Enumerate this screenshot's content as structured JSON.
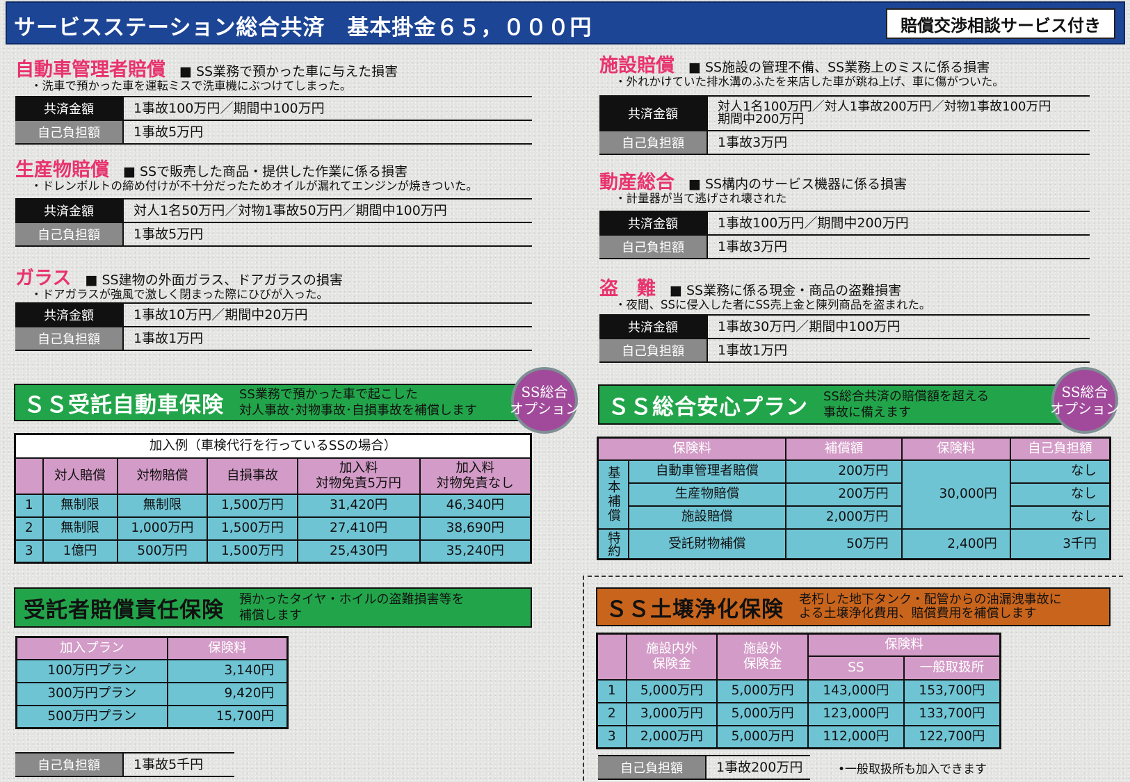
{
  "header": {
    "title": "サービスステーション総合共済　基本掛金６５，０００円",
    "badge": "賠償交渉相談サービス付き",
    "color": "#1d4595"
  },
  "labels": {
    "coverage": "共済金額",
    "deductible": "自己負担額"
  },
  "sections": [
    {
      "title": "自動車管理者賠償",
      "desc": "SS業務で預かった車に与えた損害",
      "example": "・洗車で預かった車を運転ミスで洗車機にぶつけてしまった。",
      "coverage": "1事故100万円／期間中100万円",
      "deductible": "1事故5万円"
    },
    {
      "title": "生産物賠償",
      "desc": "SSで販売した商品・提供した作業に係る損害",
      "example": "・ドレンボルトの締め付けが不十分だったためオイルが漏れてエンジンが焼きついた。",
      "coverage": "対人1名50万円／対物1事故50万円／期間中100万円",
      "deductible": "1事故5万円"
    },
    {
      "title": "ガラス",
      "desc": "SS建物の外面ガラス、ドアガラスの損害",
      "example": "・ドアガラスが強風で激しく閉まった際にひびが入った。",
      "coverage": "1事故10万円／期間中20万円",
      "deductible": "1事故1万円"
    },
    {
      "title": "施設賠償",
      "desc": "SS施設の管理不備、SS業務上のミスに係る損害",
      "example": "・外れかけていた排水溝のふたを来店した車が跳ね上げ、車に傷がついた。",
      "coverage": "対人1名100万円／対人1事故200万円／対物1事故100万円\n期間中200万円",
      "deductible": "1事故3万円"
    },
    {
      "title": "動産総合",
      "desc": "SS構内のサービス機器に係る損害",
      "example": "・計量器が当て逃げされ壊された",
      "coverage": "1事故100万円／期間中200万円",
      "deductible": "1事故3万円"
    },
    {
      "title": "盗　難",
      "desc": "SS業務に係る現金・商品の盗難損害",
      "example": "・夜間、SSに侵入した者にSS売上金と陳列商品を盗まれた。",
      "coverage": "1事故30万円／期間中100万円",
      "deductible": "1事故1万円"
    }
  ],
  "option_badge": "SS総合\nオプション",
  "auto": {
    "title": "ＳＳ受託自動車保険",
    "desc": "SS業務で預かった車で起こした\n対人事故･対物事故･自損事故を補償します",
    "caption": "加入例（車検代行を行っているSSの場合）",
    "headers": [
      "対人賠償",
      "対物賠償",
      "自損事故",
      "加入料\n対物免責5万円",
      "加入料\n対物免責なし"
    ],
    "rows": [
      [
        "1",
        "無制限",
        "無制限",
        "1,500万円",
        "31,420円",
        "46,340円"
      ],
      [
        "2",
        "無制限",
        "1,000万円",
        "1,500万円",
        "27,410円",
        "38,690円"
      ],
      [
        "3",
        "1億円",
        "500万円",
        "1,500万円",
        "25,430円",
        "35,240円"
      ]
    ]
  },
  "trust": {
    "title": "受託者賠償責任保険",
    "desc": "預かったタイヤ・ホイルの盗難損害等を\n補償します",
    "headers": [
      "加入プラン",
      "保険料"
    ],
    "rows": [
      [
        "100万円プラン",
        "3,140円"
      ],
      [
        "300万円プラン",
        "9,420円"
      ],
      [
        "500万円プラン",
        "15,700円"
      ]
    ],
    "deductible": "1事故5千円"
  },
  "plan": {
    "title": "ＳＳ総合安心プラン",
    "desc": "SS総合共済の賠償額を超える\n事故に備えます",
    "headers": [
      "保険料",
      "補償額",
      "保険料",
      "自己負担額"
    ],
    "group1": "基本補償",
    "group2": "特約",
    "rows": [
      [
        "自動車管理者賠償",
        "200万円",
        "なし"
      ],
      [
        "生産物賠償",
        "200万円",
        "なし"
      ],
      [
        "施設賠償",
        "2,000万円",
        "なし"
      ],
      [
        "受託財物補償",
        "50万円",
        "3千円"
      ]
    ],
    "premium_basic": "30,000円",
    "premium_special": "2,400円"
  },
  "soil": {
    "title": "ＳＳ土壌浄化保険",
    "desc": "老朽した地下タンク・配管からの油漏洩事故に\nよる土壌浄化費用、賠償費用を補償します",
    "color": "#c8641c",
    "headers": [
      "施設内外\n保険金",
      "施設外\n保険金",
      "保険料",
      "SS",
      "一般取扱所"
    ],
    "rows": [
      [
        "1",
        "5,000万円",
        "5,000万円",
        "143,000円",
        "153,700円"
      ],
      [
        "2",
        "3,000万円",
        "5,000万円",
        "123,000円",
        "133,700円"
      ],
      [
        "3",
        "2,000万円",
        "5,000万円",
        "112,000円",
        "122,700円"
      ]
    ],
    "deductible": "1事故200万円",
    "note": "•一般取扱所も加入できます"
  }
}
